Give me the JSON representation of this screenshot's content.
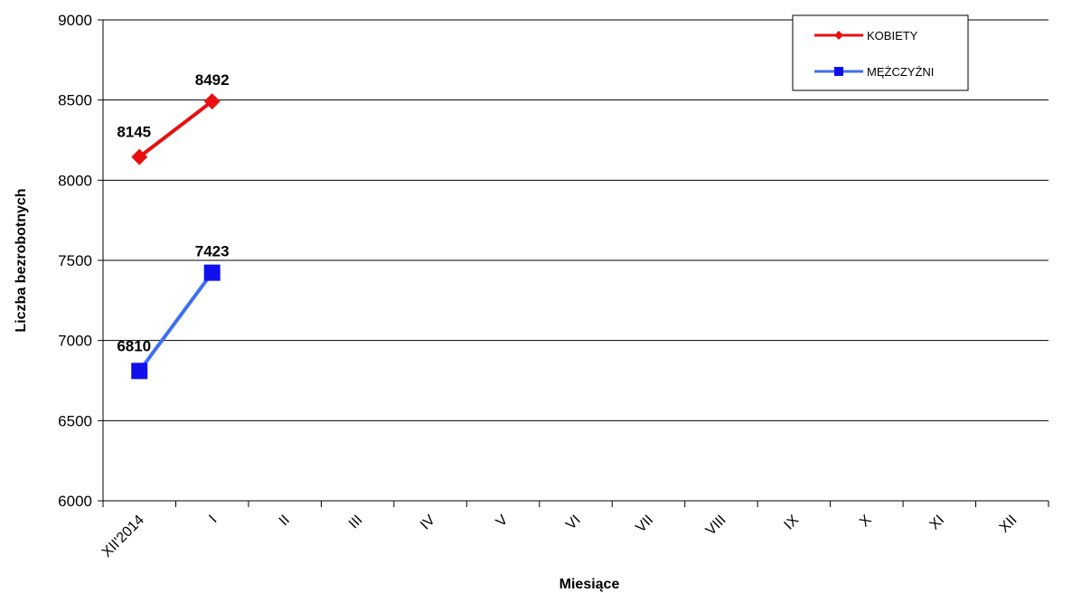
{
  "chart_data": {
    "type": "line",
    "xlabel": "Miesiące",
    "ylabel": "Liczba bezrobotnych",
    "ylim": [
      6000,
      9000
    ],
    "yticks": [
      6000,
      6500,
      7000,
      7500,
      8000,
      8500,
      9000
    ],
    "grid": true,
    "legend_position": "top-right",
    "categories": [
      "XII'2014",
      "I",
      "II",
      "III",
      "IV",
      "V",
      "VI",
      "VII",
      "VIII",
      "IX",
      "X",
      "XI",
      "XII"
    ],
    "series": [
      {
        "name": "KOBIETY",
        "color": "#e81010",
        "marker": "diamond",
        "values": [
          8145,
          8492,
          null,
          null,
          null,
          null,
          null,
          null,
          null,
          null,
          null,
          null,
          null
        ]
      },
      {
        "name": "MĘŻCZYŹNI",
        "color": "#1010ee",
        "line_color": "#3f6ff0",
        "marker": "square",
        "values": [
          6810,
          7423,
          null,
          null,
          null,
          null,
          null,
          null,
          null,
          null,
          null,
          null,
          null
        ]
      }
    ]
  }
}
